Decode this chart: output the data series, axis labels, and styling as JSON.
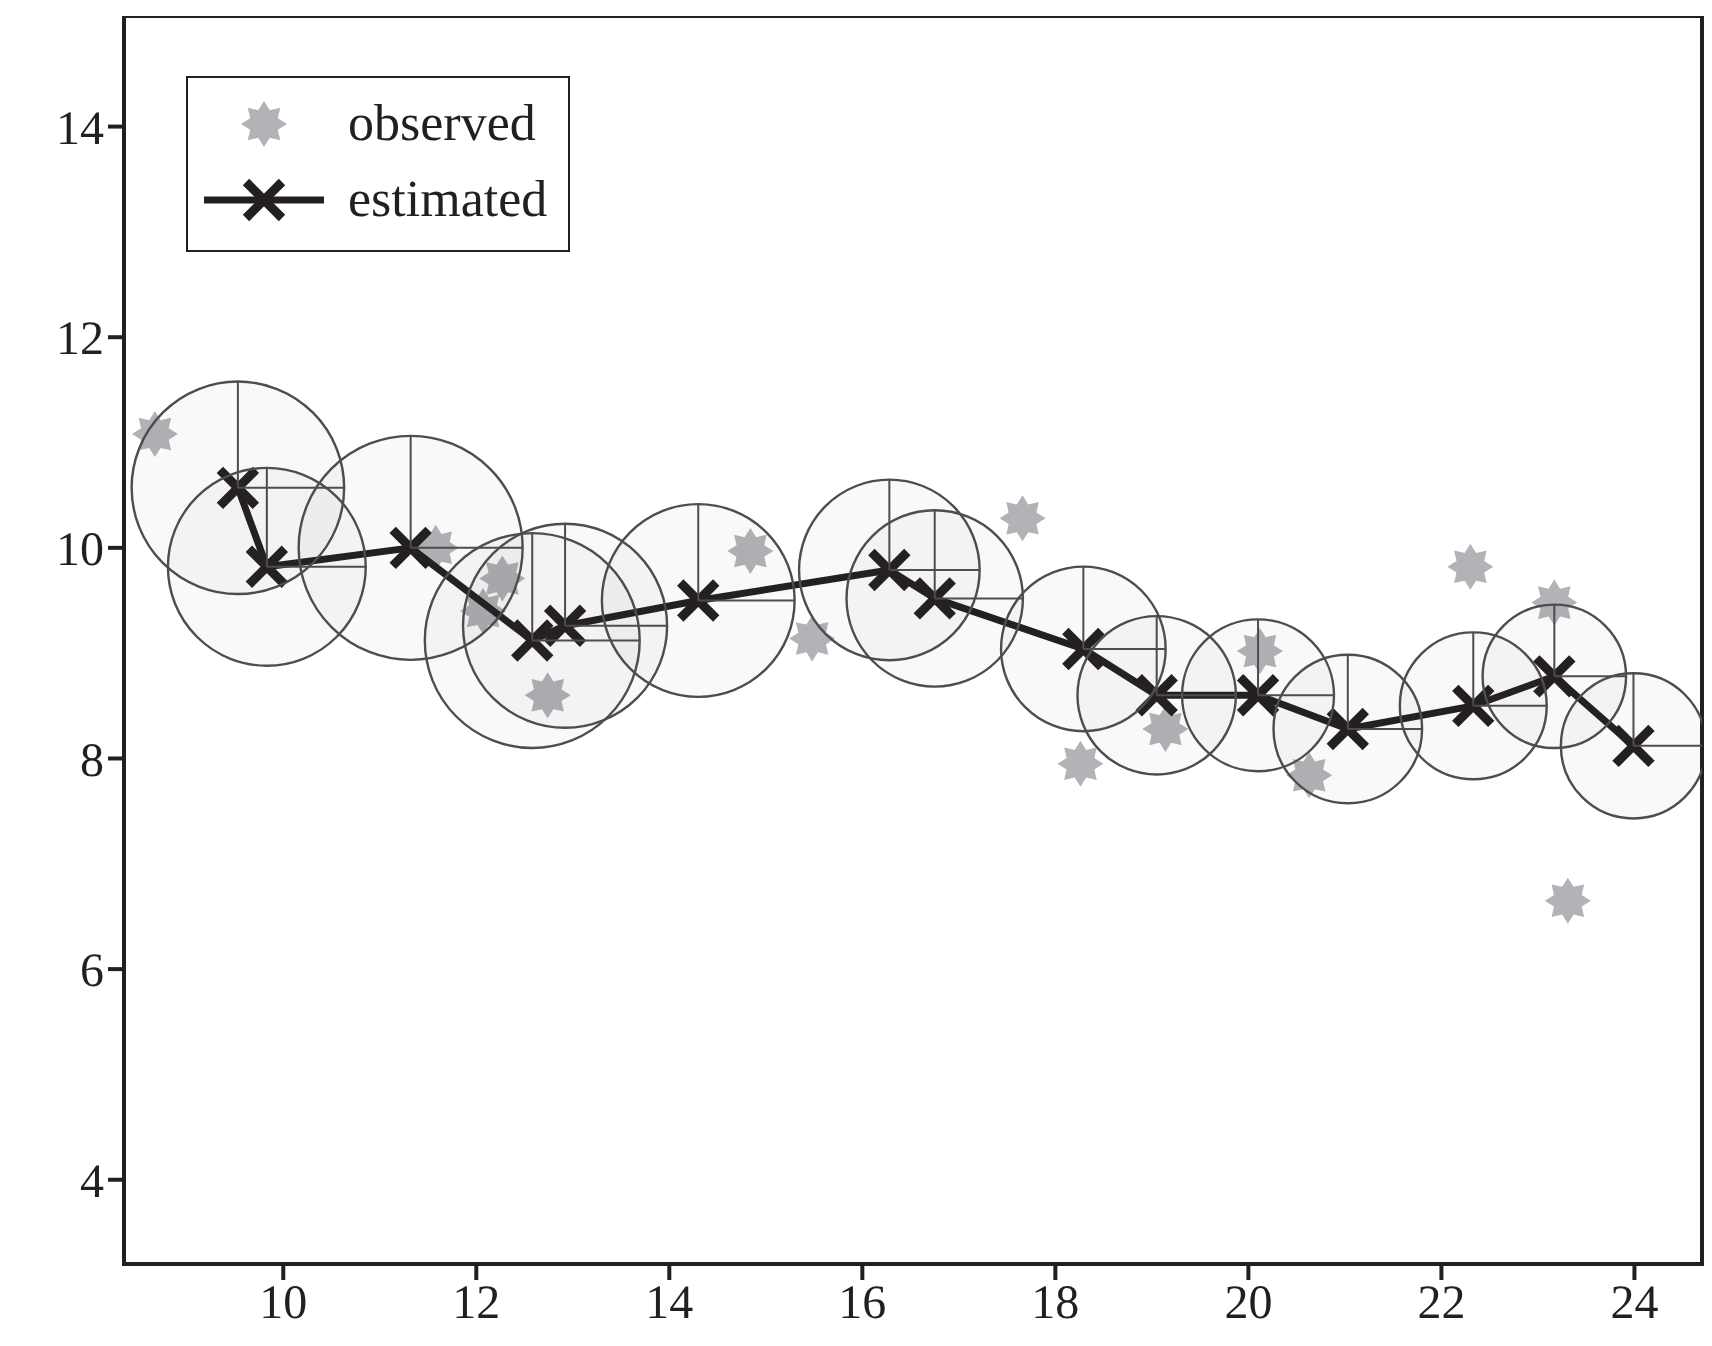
{
  "chart_data": {
    "type": "scatter",
    "xlim": [
      8.35,
      24.7
    ],
    "ylim": [
      3.2,
      15.05
    ],
    "xticks": [
      10,
      12,
      14,
      16,
      18,
      20,
      22,
      24
    ],
    "yticks": [
      4,
      6,
      8,
      10,
      12,
      14
    ],
    "grid": false,
    "legend": "top left",
    "series": [
      {
        "name": "observed",
        "type": "scatter",
        "marker": "star",
        "color": "#b1b3b6",
        "x": [
          8.67,
          11.58,
          12.27,
          12.07,
          12.74,
          14.84,
          15.48,
          17.66,
          18.26,
          19.14,
          20.12,
          20.63,
          22.3,
          23.17,
          23.31
        ],
        "values": [
          11.08,
          10.0,
          9.71,
          9.4,
          8.6,
          9.97,
          9.14,
          10.28,
          7.95,
          8.28,
          9.02,
          7.84,
          9.82,
          9.48,
          6.65
        ]
      },
      {
        "name": "estimated",
        "type": "line",
        "marker": "cross",
        "color": "#231f20",
        "x": [
          9.53,
          9.83,
          11.32,
          12.58,
          12.92,
          14.3,
          16.28,
          16.75,
          18.29,
          19.05,
          20.1,
          21.03,
          22.33,
          23.17,
          23.99
        ],
        "values": [
          10.57,
          9.82,
          10.0,
          9.12,
          9.26,
          9.5,
          9.79,
          9.52,
          9.04,
          8.6,
          8.6,
          8.28,
          8.5,
          8.78,
          8.12
        ]
      },
      {
        "type": "bubble",
        "color": "#4d4d4d",
        "x": [
          9.53,
          9.83,
          11.32,
          12.58,
          12.92,
          14.3,
          16.28,
          16.75,
          18.29,
          19.05,
          20.1,
          21.03,
          22.33,
          23.17,
          23.99
        ],
        "values": [
          10.57,
          9.82,
          10.0,
          9.12,
          9.26,
          9.5,
          9.79,
          9.52,
          9.04,
          8.6,
          8.6,
          8.28,
          8.5,
          8.78,
          8.12
        ],
        "sizes": [
          0.9,
          0.78,
          1,
          0.92,
          0.83,
          0.74,
          0.65,
          0.62,
          0.54,
          0.5,
          0.46,
          0.44,
          0.43,
          0.41,
          0.42
        ]
      }
    ]
  }
}
